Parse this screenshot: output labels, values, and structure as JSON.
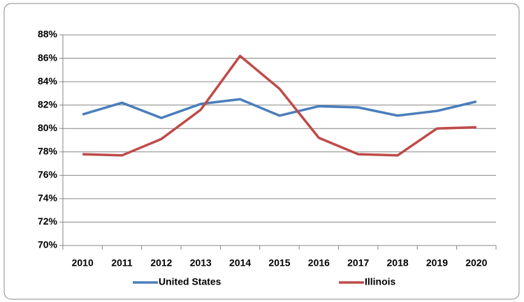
{
  "chart_data": {
    "type": "line",
    "categories": [
      "2010",
      "2011",
      "2012",
      "2013",
      "2014",
      "2015",
      "2016",
      "2017",
      "2018",
      "2019",
      "2020"
    ],
    "series": [
      {
        "name": "United States",
        "color": "#4a7ebb",
        "values": [
          81.2,
          82.2,
          80.9,
          82.1,
          82.5,
          81.1,
          81.9,
          81.8,
          81.1,
          81.5,
          82.3
        ]
      },
      {
        "name": "Illinois",
        "color": "#be4b48",
        "values": [
          77.8,
          77.7,
          79.1,
          81.6,
          86.2,
          83.4,
          79.2,
          77.8,
          77.7,
          80.0,
          80.1
        ]
      }
    ],
    "ylim": [
      70,
      88
    ],
    "yticks": [
      {
        "value": 70,
        "label": "70%"
      },
      {
        "value": 72,
        "label": "72%"
      },
      {
        "value": 74,
        "label": "74%"
      },
      {
        "value": 76,
        "label": "76%"
      },
      {
        "value": 78,
        "label": "78%"
      },
      {
        "value": 80,
        "label": "80%"
      },
      {
        "value": 82,
        "label": "82%"
      },
      {
        "value": 84,
        "label": "84%"
      },
      {
        "value": 86,
        "label": "86%"
      },
      {
        "value": 88,
        "label": "88%"
      }
    ],
    "grid": true,
    "legend": "bottom"
  }
}
